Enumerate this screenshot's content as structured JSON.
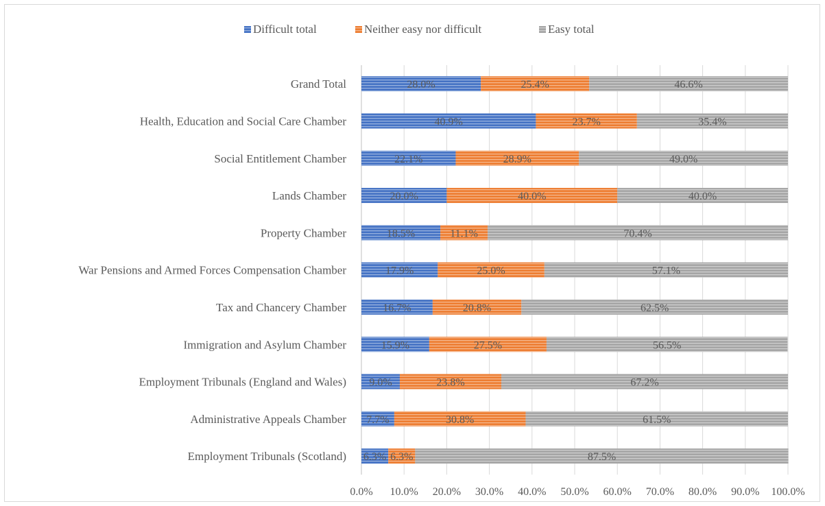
{
  "chart_data": {
    "type": "bar",
    "orientation": "horizontal",
    "stacked": true,
    "percent_stacked": true,
    "categories": [
      "Grand Total",
      "Health, Education and Social Care Chamber",
      "Social Entitlement Chamber",
      "Lands Chamber",
      "Property Chamber",
      "War Pensions and Armed Forces Compensation Chamber",
      "Tax and Chancery Chamber",
      "Immigration and Asylum Chamber",
      "Employment Tribunals (England and Wales)",
      "Administrative Appeals Chamber",
      "Employment Tribunals (Scotland)"
    ],
    "series": [
      {
        "name": "Difficult total",
        "color": "#4472c4",
        "values": [
          28.0,
          40.9,
          22.1,
          20.0,
          18.5,
          17.9,
          16.7,
          15.9,
          9.0,
          7.7,
          6.3
        ],
        "labels": [
          "28.0%",
          "40.9%",
          "22.1%",
          "20.0%",
          "18.5%",
          "17.9%",
          "16.7%",
          "15.9%",
          "9.0%",
          "7.7%",
          "6.3%"
        ]
      },
      {
        "name": "Neither easy nor difficult",
        "color": "#ed7d31",
        "values": [
          25.4,
          23.7,
          28.9,
          40.0,
          11.1,
          25.0,
          20.8,
          27.5,
          23.8,
          30.8,
          6.3
        ],
        "labels": [
          "25.4%",
          "23.7%",
          "28.9%",
          "40.0%",
          "11.1%",
          "25.0%",
          "20.8%",
          "27.5%",
          "23.8%",
          "30.8%",
          "6.3%"
        ]
      },
      {
        "name": "Easy total",
        "color": "#a5a5a5",
        "values": [
          46.6,
          35.4,
          49.0,
          40.0,
          70.4,
          57.1,
          62.5,
          56.5,
          67.2,
          61.5,
          87.5
        ],
        "labels": [
          "46.6%",
          "35.4%",
          "49.0%",
          "40.0%",
          "70.4%",
          "57.1%",
          "62.5%",
          "56.5%",
          "67.2%",
          "61.5%",
          "87.5%"
        ]
      }
    ],
    "x_ticks": [
      "0.0%",
      "10.0%",
      "20.0%",
      "30.0%",
      "40.0%",
      "50.0%",
      "60.0%",
      "70.0%",
      "80.0%",
      "90.0%",
      "100.0%"
    ],
    "xlim": [
      0,
      100
    ],
    "grid": true,
    "legend_position": "top",
    "title": "",
    "xlabel": "",
    "ylabel": ""
  }
}
